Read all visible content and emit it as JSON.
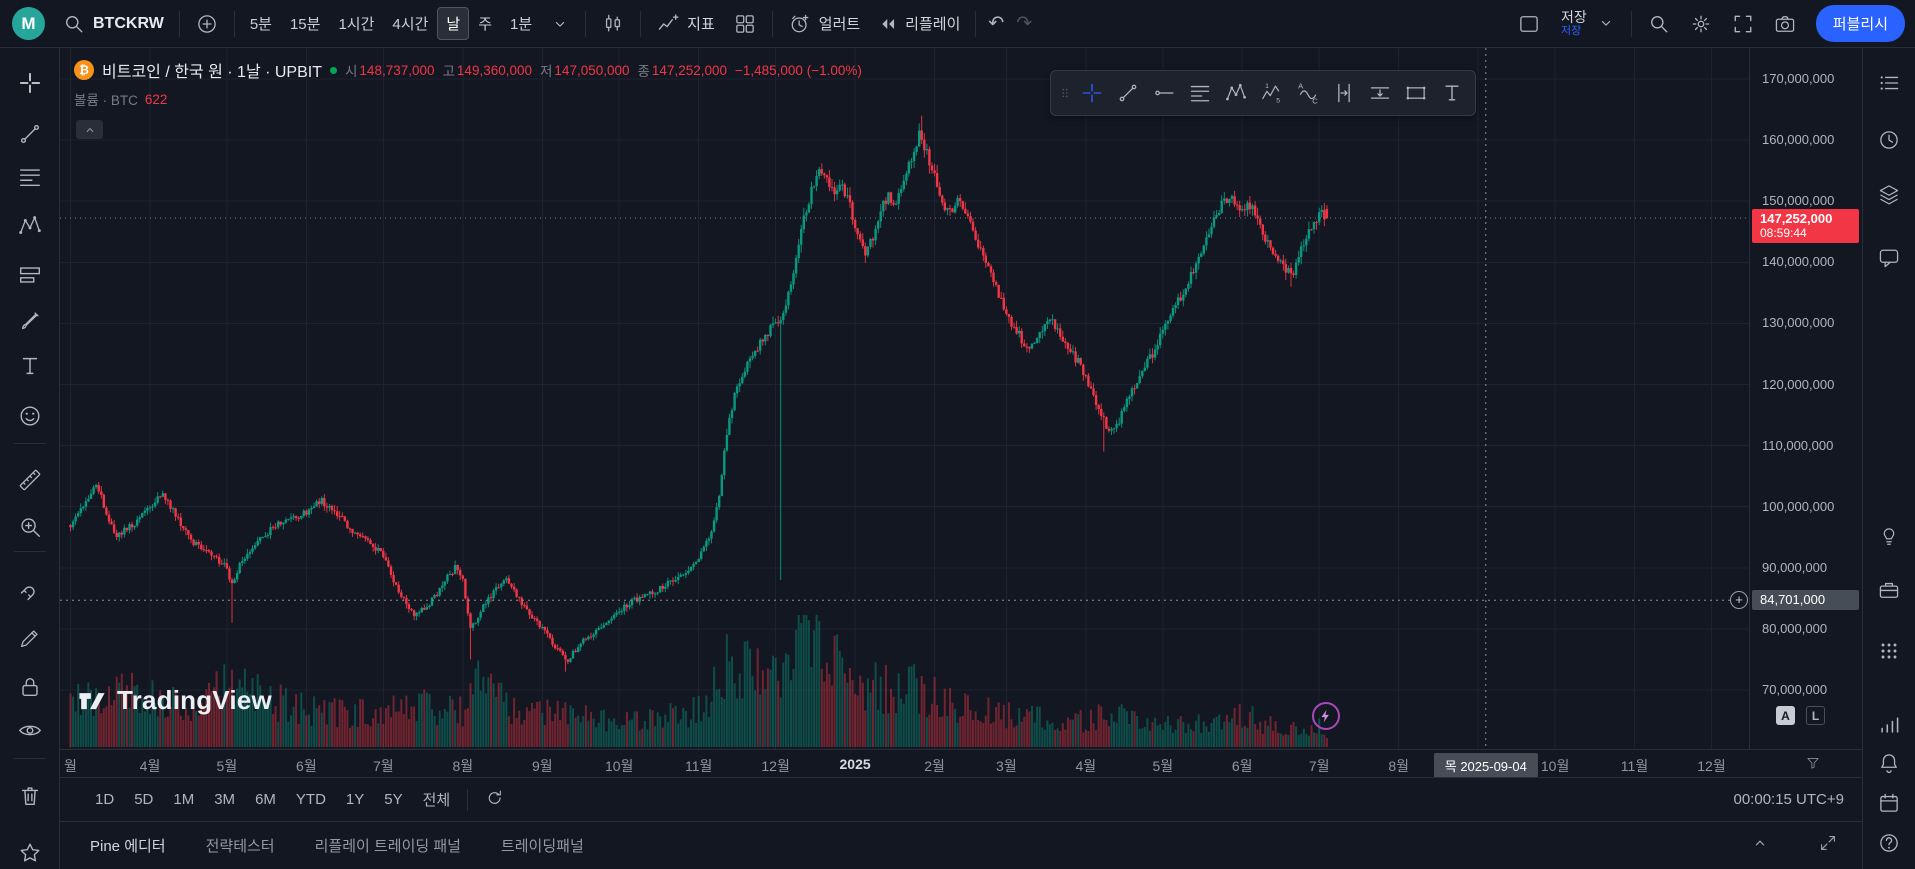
{
  "topbar": {
    "avatar_letter": "M",
    "symbol": "BTCKRW",
    "timeframes": [
      "5분",
      "15분",
      "1시간",
      "4시간",
      "날",
      "주",
      "1분"
    ],
    "active_timeframe": "날",
    "indicators_label": "지표",
    "alert_label": "얼러트",
    "replay_label": "리플레이",
    "undo_glyph": "↶",
    "redo_glyph": "↷",
    "save_label": "저장",
    "save_status": "저장",
    "publish_label": "퍼블리시"
  },
  "legend": {
    "coin_glyph": "₿",
    "title": "비트코인 / 한국 원 · 1날 · UPBIT",
    "open_label": "시",
    "open": "148,737,000",
    "high_label": "고",
    "high": "149,360,000",
    "low_label": "저",
    "low": "147,050,000",
    "close_label": "종",
    "close": "147,252,000",
    "change": "−1,485,000 (−1.00%)",
    "volume_label": "볼륨 · BTC",
    "volume_value": "622"
  },
  "axes": {
    "price_labels": [
      "170,000,000",
      "160,000,000",
      "150,000,000",
      "140,000,000",
      "130,000,000",
      "120,000,000",
      "110,000,000",
      "100,000,000",
      "90,000,000",
      "80,000,000",
      "70,000,000"
    ],
    "price_tag": {
      "price": "147,252,000",
      "countdown": "08:59:44"
    },
    "crosshair_price": "84,701,000",
    "crosshair_date": "목 2025-09-04",
    "auto_label": "A",
    "log_label": "L"
  },
  "watermark": "TradingView",
  "range_bar": {
    "ranges": [
      "1D",
      "5D",
      "1M",
      "3M",
      "6M",
      "YTD",
      "1Y",
      "5Y",
      "전체"
    ],
    "clock": "00:00:15 UTC+9"
  },
  "bottom_tabs": [
    "Pine 에디터",
    "전략테스터",
    "리플레이 트레이딩 패널",
    "트레이딩패널"
  ],
  "colors": {
    "bg": "#131722",
    "panel_border": "#2a2e39",
    "accent": "#2962ff",
    "up": "#089981",
    "down": "#f23645",
    "text": "#d1d4dc",
    "muted": "#787b86",
    "axis_tag": "#474d57",
    "price_tag": "#f23645",
    "avatar": "#26a69a",
    "bitcoin": "#f7931a",
    "market_open": "#00a94f",
    "boost": "#ab47bc",
    "grid": "#1d2230"
  },
  "icons": {
    "topbar": [
      "search-icon",
      "plus-circle-icon",
      "chevron-down-icon",
      "candlestick-icon",
      "indicators-icon",
      "grid-layout-icon",
      "alarm-plus-icon",
      "rewind-icon",
      "undo-icon",
      "redo-icon",
      "layout-square-icon",
      "quick-search-icon",
      "gear-icon",
      "fullscreen-icon",
      "camera-icon"
    ],
    "left_toolbar": [
      "crosshair-icon",
      "trendline-icon",
      "fib-lines-icon",
      "xabcd-pattern-icon",
      "position-icon",
      "brush-icon",
      "text-tool-icon",
      "emoji-icon",
      "ruler-icon",
      "zoom-in-icon",
      "magnet-icon",
      "pencil-icon",
      "lock-icon",
      "eye-icon",
      "trash-icon",
      "star-icon"
    ],
    "float_toolbar": [
      "drag-handle-icon",
      "crosshair-icon",
      "trendline-icon",
      "horizontal-ray-icon",
      "fib-lines-icon",
      "xabcd-pattern-icon",
      "elliott-wave-icon",
      "abc-pattern-icon",
      "date-range-icon",
      "price-range-icon",
      "rectangle-icon",
      "text-tool-icon"
    ],
    "right_sidebar": [
      "watchlist-icon",
      "alerts-clock-icon",
      "layers-icon",
      "chat-icon",
      "ideas-icon",
      "portfolio-icon",
      "apps-grid-icon",
      "signal-icon",
      "bell-icon",
      "calendar-icon",
      "help-icon"
    ]
  },
  "chart_data": {
    "type": "candlestick",
    "symbol": "BTCKRW · 1D · UPBIT",
    "unit": "KRW millions",
    "y_range_m": [
      70,
      170
    ],
    "price_line_m": 147.252,
    "crosshair": {
      "d": 552,
      "price_m": 84.701
    },
    "last_candle": {
      "open": 148.737,
      "high": 149.36,
      "low": 147.05,
      "close": 147.252
    },
    "months": [
      {
        "label": "월",
        "d": 0
      },
      {
        "label": "4월",
        "d": 31
      },
      {
        "label": "5월",
        "d": 61
      },
      {
        "label": "6월",
        "d": 92
      },
      {
        "label": "7월",
        "d": 122
      },
      {
        "label": "8월",
        "d": 153
      },
      {
        "label": "9월",
        "d": 184
      },
      {
        "label": "10월",
        "d": 214
      },
      {
        "label": "11월",
        "d": 245
      },
      {
        "label": "12월",
        "d": 275
      },
      {
        "label": "2025",
        "d": 306,
        "year": true
      },
      {
        "label": "2월",
        "d": 337
      },
      {
        "label": "3월",
        "d": 365
      },
      {
        "label": "4월",
        "d": 396
      },
      {
        "label": "5월",
        "d": 426
      },
      {
        "label": "6월",
        "d": 457
      },
      {
        "label": "7월",
        "d": 487
      },
      {
        "label": "8월",
        "d": 518
      },
      {
        "label": "9월",
        "d": 549,
        "hidden": true
      },
      {
        "label": "10월",
        "d": 579
      },
      {
        "label": "11월",
        "d": 610
      },
      {
        "label": "12월",
        "d": 640
      }
    ],
    "anchors": [
      [
        0,
        97
      ],
      [
        6,
        101
      ],
      [
        10,
        104
      ],
      [
        14,
        99
      ],
      [
        18,
        95
      ],
      [
        24,
        97
      ],
      [
        31,
        100
      ],
      [
        36,
        102
      ],
      [
        42,
        98
      ],
      [
        48,
        94
      ],
      [
        55,
        92
      ],
      [
        61,
        90
      ],
      [
        63,
        87
      ],
      [
        66,
        91
      ],
      [
        72,
        94
      ],
      [
        80,
        97
      ],
      [
        86,
        98
      ],
      [
        92,
        99
      ],
      [
        98,
        101
      ],
      [
        104,
        99
      ],
      [
        110,
        96
      ],
      [
        116,
        94
      ],
      [
        122,
        92
      ],
      [
        128,
        86
      ],
      [
        134,
        82
      ],
      [
        140,
        84
      ],
      [
        146,
        88
      ],
      [
        150,
        90
      ],
      [
        153,
        88
      ],
      [
        156,
        80
      ],
      [
        160,
        83
      ],
      [
        165,
        86
      ],
      [
        170,
        88
      ],
      [
        175,
        85
      ],
      [
        180,
        82
      ],
      [
        184,
        80
      ],
      [
        189,
        77
      ],
      [
        194,
        75
      ],
      [
        200,
        78
      ],
      [
        207,
        80
      ],
      [
        214,
        83
      ],
      [
        221,
        85
      ],
      [
        228,
        86
      ],
      [
        235,
        88
      ],
      [
        241,
        90
      ],
      [
        245,
        92
      ],
      [
        250,
        96
      ],
      [
        253,
        102
      ],
      [
        256,
        112
      ],
      [
        259,
        118
      ],
      [
        262,
        122
      ],
      [
        265,
        124
      ],
      [
        268,
        126
      ],
      [
        271,
        128
      ],
      [
        274,
        130
      ],
      [
        277,
        131
      ],
      [
        280,
        135
      ],
      [
        283,
        140
      ],
      [
        286,
        147
      ],
      [
        289,
        152
      ],
      [
        292,
        156
      ],
      [
        295,
        153
      ],
      [
        298,
        151
      ],
      [
        301,
        153
      ],
      [
        304,
        149
      ],
      [
        307,
        144
      ],
      [
        310,
        141
      ],
      [
        313,
        144
      ],
      [
        316,
        149
      ],
      [
        319,
        151
      ],
      [
        322,
        150
      ],
      [
        325,
        153
      ],
      [
        328,
        157
      ],
      [
        331,
        161
      ],
      [
        334,
        158
      ],
      [
        337,
        154
      ],
      [
        340,
        150
      ],
      [
        343,
        148
      ],
      [
        346,
        151
      ],
      [
        349,
        148
      ],
      [
        352,
        145
      ],
      [
        355,
        142
      ],
      [
        358,
        139
      ],
      [
        361,
        136
      ],
      [
        364,
        133
      ],
      [
        367,
        130
      ],
      [
        370,
        128
      ],
      [
        373,
        126
      ],
      [
        376,
        127
      ],
      [
        379,
        129
      ],
      [
        382,
        131
      ],
      [
        385,
        129
      ],
      [
        388,
        127
      ],
      [
        391,
        125
      ],
      [
        394,
        123
      ],
      [
        398,
        119
      ],
      [
        402,
        115
      ],
      [
        405,
        112
      ],
      [
        408,
        113
      ],
      [
        411,
        116
      ],
      [
        414,
        119
      ],
      [
        418,
        122
      ],
      [
        422,
        125
      ],
      [
        426,
        129
      ],
      [
        430,
        132
      ],
      [
        434,
        135
      ],
      [
        438,
        139
      ],
      [
        442,
        143
      ],
      [
        446,
        147
      ],
      [
        450,
        150
      ],
      [
        453,
        151
      ],
      [
        456,
        148
      ],
      [
        459,
        150
      ],
      [
        462,
        148
      ],
      [
        465,
        145
      ],
      [
        468,
        142
      ],
      [
        471,
        140
      ],
      [
        474,
        139
      ],
      [
        477,
        138
      ],
      [
        480,
        142
      ],
      [
        483,
        145
      ],
      [
        486,
        147
      ],
      [
        488,
        148
      ],
      [
        490,
        147.6
      ]
    ],
    "events": [
      {
        "d": 63,
        "low": 81
      },
      {
        "d": 156,
        "low": 75
      },
      {
        "d": 193,
        "low": 73
      },
      {
        "d": 277,
        "low": 88
      },
      {
        "d": 332,
        "high": 164
      },
      {
        "d": 403,
        "low": 109
      },
      {
        "d": 476,
        "low": 136
      }
    ],
    "volume_anchors": [
      [
        0,
        0.4
      ],
      [
        15,
        0.5
      ],
      [
        31,
        0.42
      ],
      [
        50,
        0.35
      ],
      [
        63,
        0.55
      ],
      [
        75,
        0.4
      ],
      [
        92,
        0.32
      ],
      [
        110,
        0.28
      ],
      [
        122,
        0.3
      ],
      [
        135,
        0.35
      ],
      [
        153,
        0.3
      ],
      [
        157,
        0.6
      ],
      [
        170,
        0.35
      ],
      [
        184,
        0.28
      ],
      [
        200,
        0.25
      ],
      [
        214,
        0.22
      ],
      [
        230,
        0.25
      ],
      [
        245,
        0.3
      ],
      [
        252,
        0.5
      ],
      [
        258,
        0.75
      ],
      [
        265,
        0.6
      ],
      [
        272,
        0.55
      ],
      [
        280,
        0.7
      ],
      [
        285,
        1.0
      ],
      [
        290,
        0.85
      ],
      [
        297,
        0.7
      ],
      [
        303,
        0.6
      ],
      [
        310,
        0.55
      ],
      [
        316,
        0.5
      ],
      [
        323,
        0.45
      ],
      [
        330,
        0.5
      ],
      [
        338,
        0.4
      ],
      [
        345,
        0.35
      ],
      [
        355,
        0.3
      ],
      [
        365,
        0.28
      ],
      [
        375,
        0.25
      ],
      [
        385,
        0.22
      ],
      [
        396,
        0.22
      ],
      [
        407,
        0.3
      ],
      [
        415,
        0.25
      ],
      [
        426,
        0.18
      ],
      [
        435,
        0.2
      ],
      [
        445,
        0.22
      ],
      [
        453,
        0.25
      ],
      [
        458,
        0.28
      ],
      [
        465,
        0.2
      ],
      [
        472,
        0.18
      ],
      [
        480,
        0.15
      ],
      [
        487,
        0.18
      ],
      [
        490,
        0.12
      ]
    ]
  }
}
